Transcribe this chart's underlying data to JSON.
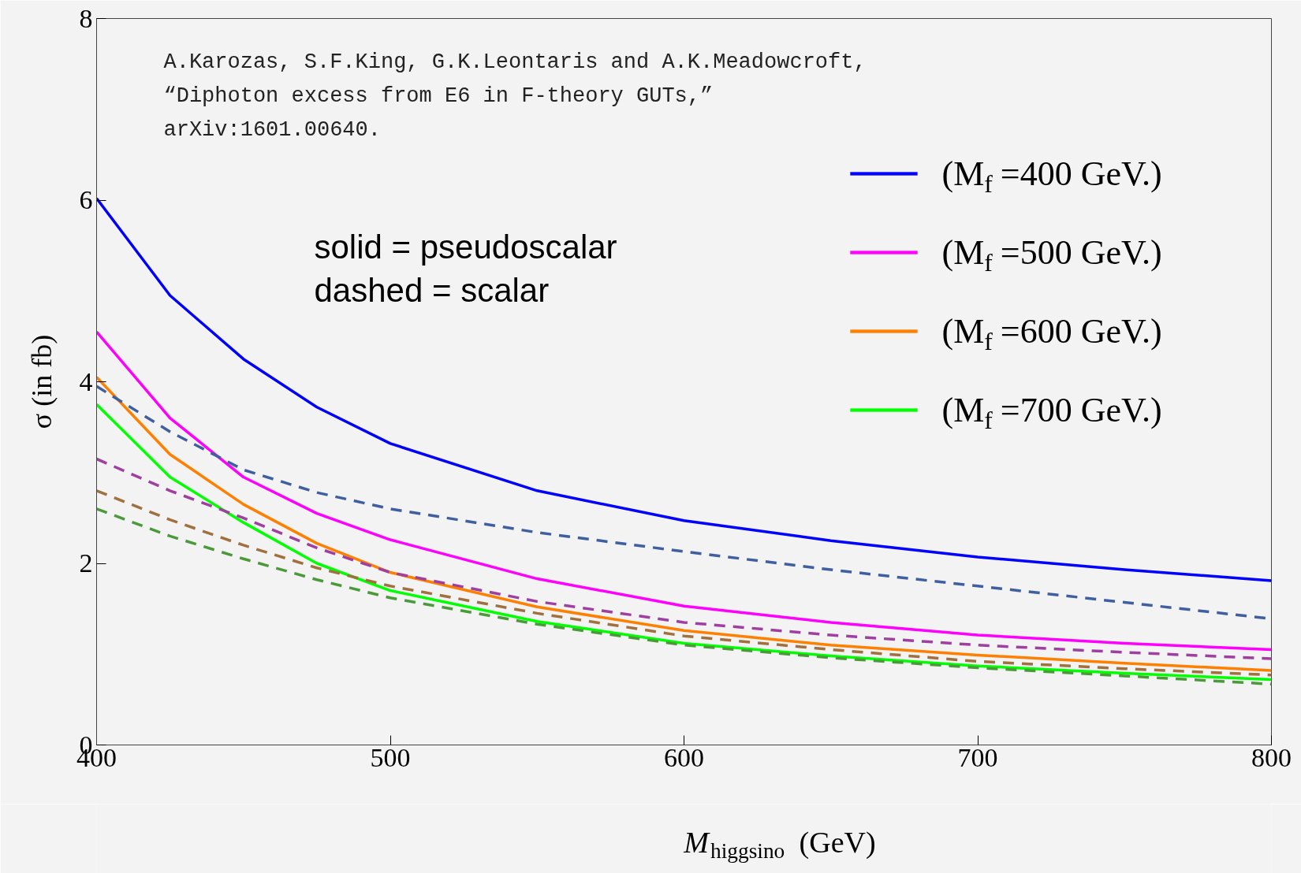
{
  "chart_data": {
    "type": "line",
    "xlabel": "M$_{higgsino}$  (GeV)",
    "ylabel": "σ (in fb)",
    "x": [
      400,
      425,
      450,
      475,
      500,
      550,
      600,
      650,
      700,
      750,
      800
    ],
    "xlim": [
      400,
      800
    ],
    "xticks": [
      400,
      500,
      600,
      700,
      800
    ],
    "ylim": [
      0,
      8
    ],
    "yticks": [
      0,
      2,
      4,
      6,
      8
    ],
    "grid": false,
    "legend": "top right",
    "annotations": [
      "A.Karozas, S.F.King, G.K.Leontaris and A.K.Meadowcroft,",
      "  “Diphoton excess from E6 in F-theory GUTs,”",
      "  arXiv:1601.00640.",
      "solid  = pseudoscalar",
      "dashed = scalar"
    ],
    "series": [
      {
        "name": "(M$_{f}$ =400 GeV.)",
        "color": "#0000ff",
        "line_style": "solid",
        "values": [
          6.02,
          4.95,
          4.25,
          3.72,
          3.32,
          2.8,
          2.47,
          2.25,
          2.07,
          1.93,
          1.81
        ]
      },
      {
        "name": "(M$_{f}$ =500 GeV.)",
        "color": "#ff00ff",
        "line_style": "solid",
        "values": [
          4.55,
          3.6,
          2.95,
          2.55,
          2.26,
          1.83,
          1.53,
          1.35,
          1.21,
          1.12,
          1.05
        ]
      },
      {
        "name": "(M$_{f}$ =600 GeV.)",
        "color": "#ff7f00",
        "line_style": "solid",
        "values": [
          4.05,
          3.2,
          2.65,
          2.22,
          1.9,
          1.52,
          1.26,
          1.1,
          0.99,
          0.9,
          0.82
        ]
      },
      {
        "name": "(M$_{f}$ =700 GeV.)",
        "color": "#00ff00",
        "line_style": "solid",
        "values": [
          3.75,
          2.95,
          2.45,
          2.0,
          1.7,
          1.36,
          1.12,
          0.98,
          0.87,
          0.79,
          0.72
        ]
      },
      {
        "color": "#3f5fa0",
        "line_style": "dashed",
        "values": [
          3.95,
          3.45,
          3.03,
          2.78,
          2.6,
          2.34,
          2.13,
          1.93,
          1.75,
          1.57,
          1.39
        ]
      },
      {
        "color": "#9f3f9f",
        "line_style": "dashed",
        "values": [
          3.15,
          2.8,
          2.5,
          2.17,
          1.9,
          1.58,
          1.35,
          1.21,
          1.1,
          1.02,
          0.95
        ]
      },
      {
        "color": "#a0703f",
        "line_style": "dashed",
        "values": [
          2.8,
          2.48,
          2.2,
          1.95,
          1.75,
          1.45,
          1.2,
          1.05,
          0.92,
          0.84,
          0.77
        ]
      },
      {
        "color": "#4a9a3a",
        "line_style": "dashed",
        "values": [
          2.6,
          2.3,
          2.05,
          1.82,
          1.62,
          1.33,
          1.1,
          0.96,
          0.85,
          0.76,
          0.67
        ]
      }
    ]
  }
}
